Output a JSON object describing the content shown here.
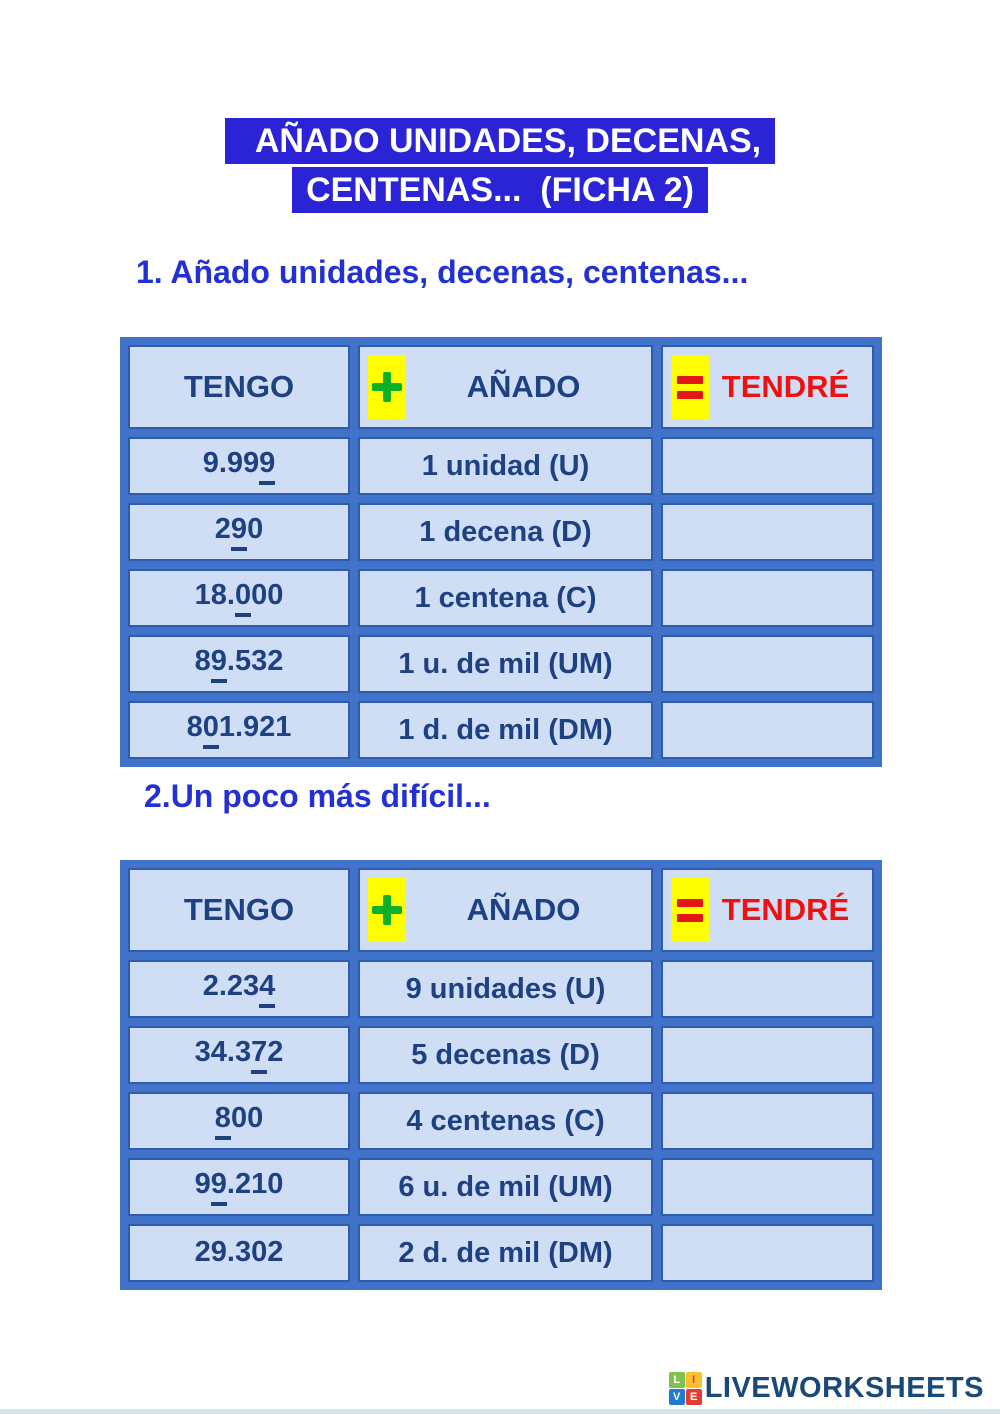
{
  "title": {
    "line1": "AÑADO UNIDADES, DECENAS,",
    "line2": "CENTENAS...  (FICHA 2)"
  },
  "table_header": {
    "tengo": "TENGO",
    "anado": "AÑADO",
    "tendre": "TENDRÉ",
    "plus_icon": "plus-icon",
    "equals_icon": "equals-icon"
  },
  "tables": [
    {
      "heading": "1. Añado unidades, decenas, centenas...",
      "rows": [
        {
          "tengo": {
            "pre": "9.99",
            "u": "9",
            "post": ""
          },
          "anado": "1 unidad (U)",
          "tendre": ""
        },
        {
          "tengo": {
            "pre": "2",
            "u": "9",
            "post": "0"
          },
          "anado": "1 decena (D)",
          "tendre": ""
        },
        {
          "tengo": {
            "pre": "18.",
            "u": "0",
            "post": "00"
          },
          "anado": "1 centena (C)",
          "tendre": ""
        },
        {
          "tengo": {
            "pre": "8",
            "u": "9",
            "post": ".532"
          },
          "anado": "1 u. de mil (UM)",
          "tendre": ""
        },
        {
          "tengo": {
            "pre": "8",
            "u": "0",
            "post": "1.921"
          },
          "anado": "1 d. de mil (DM)",
          "tendre": ""
        }
      ]
    },
    {
      "heading": "2.Un poco más difícil...",
      "rows": [
        {
          "tengo": {
            "pre": "2.23",
            "u": "4",
            "post": ""
          },
          "anado": "9 unidades (U)",
          "tendre": ""
        },
        {
          "tengo": {
            "pre": "34.3",
            "u": "7",
            "post": "2"
          },
          "anado": "5 decenas (D)",
          "tendre": ""
        },
        {
          "tengo": {
            "pre": "",
            "u": "8",
            "post": "00"
          },
          "anado": "4 centenas (C)",
          "tendre": ""
        },
        {
          "tengo": {
            "pre": "9",
            "u": "9",
            "post": ".210"
          },
          "anado": "6 u. de mil (UM)",
          "tendre": ""
        },
        {
          "tengo": {
            "pre": "29.302",
            "u": "",
            "post": ""
          },
          "anado": "2 d. de mil (DM)",
          "tendre": ""
        }
      ]
    }
  ],
  "footer": {
    "brand": "LIVEWORKSHEETS",
    "logo_letters": [
      "L",
      "I",
      "V",
      "E"
    ]
  },
  "colors": {
    "title_bg": "#2a24d6",
    "heading_text": "#2330d4",
    "table_frame": "#4073c9",
    "cell_bg": "#cfddf5",
    "cell_text": "#1e4182",
    "tendre_red": "#ee1111",
    "plus_green": "#0db02b",
    "equals_red": "#e31515",
    "highlight_yellow": "#ffff00",
    "footer_navy": "#194a77"
  }
}
